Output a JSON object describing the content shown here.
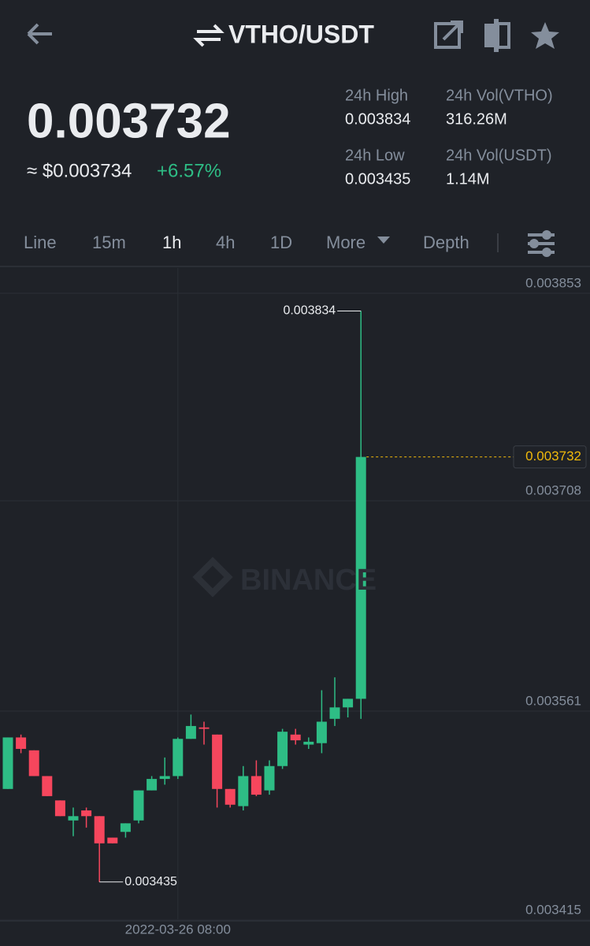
{
  "header": {
    "pair": "VTHO/USDT"
  },
  "ticker": {
    "price": "0.003732",
    "fiat": "≈ $0.003734",
    "change": "+6.57%",
    "stats": [
      {
        "label": "24h High",
        "value": "0.003834"
      },
      {
        "label": "24h Vol(VTHO)",
        "value": "316.26M"
      },
      {
        "label": "24h Low",
        "value": "0.003435"
      },
      {
        "label": "24h Vol(USDT)",
        "value": "1.14M"
      }
    ]
  },
  "tabs": [
    "Line",
    "15m",
    "1h",
    "4h",
    "1D",
    "More",
    "Depth"
  ],
  "chart_data": {
    "type": "candlestick",
    "watermark": "BINANCE",
    "categories": [
      null,
      null,
      null,
      null,
      null,
      null,
      null,
      null,
      null,
      null,
      null,
      null,
      null,
      "2022-03-26 08:00",
      null,
      null,
      null,
      null,
      null,
      null,
      null,
      null,
      null,
      null,
      null,
      null,
      null,
      null
    ],
    "open": [
      0.0035,
      0.003536,
      0.003527,
      0.003509,
      0.003492,
      0.003478,
      0.003485,
      0.003481,
      0.003466,
      0.00347,
      0.003478,
      0.003499,
      0.003507,
      0.003509,
      0.003535,
      0.003543,
      0.003538,
      0.0035,
      0.003488,
      0.003509,
      0.003499,
      0.003516,
      0.003538,
      0.003531,
      0.003532,
      0.003549,
      0.003557,
      0.003563
    ],
    "high": [
      0.003536,
      0.003538,
      0.003527,
      0.003509,
      0.003492,
      0.003487,
      0.003487,
      0.003481,
      0.003466,
      0.003476,
      0.003499,
      0.003509,
      0.003522,
      0.003536,
      0.003552,
      0.003547,
      0.003538,
      0.0035,
      0.003516,
      0.00352,
      0.00352,
      0.003542,
      0.003542,
      0.003536,
      0.003569,
      0.003578,
      0.003563,
      0.003834
    ],
    "low": [
      0.0035,
      0.003525,
      0.003509,
      0.003495,
      0.003481,
      0.003467,
      0.003473,
      0.003435,
      0.003462,
      0.003466,
      0.003476,
      0.003499,
      0.003503,
      0.003507,
      0.003535,
      0.003531,
      0.003487,
      0.003487,
      0.003485,
      0.003495,
      0.003496,
      0.003514,
      0.003531,
      0.003528,
      0.003525,
      0.003544,
      0.00355,
      0.003549
    ],
    "close": [
      0.003536,
      0.003528,
      0.003509,
      0.003495,
      0.003481,
      0.003481,
      0.003481,
      0.003462,
      0.003462,
      0.003476,
      0.003499,
      0.003507,
      0.003509,
      0.003535,
      0.003544,
      0.003542,
      0.0035,
      0.003489,
      0.003509,
      0.003496,
      0.003516,
      0.00354,
      0.003534,
      0.003533,
      0.003547,
      0.003557,
      0.003563,
      0.003732
    ],
    "up_color": "#2ebd85",
    "down_color": "#f6465d",
    "ylim": [
      0.003409,
      0.003864
    ],
    "yticks": [
      0.003853,
      0.003708,
      0.003561,
      0.003415
    ],
    "grid": true,
    "annotations": {
      "high": 0.003834,
      "low": 0.003435,
      "last_price": 0.003732
    }
  }
}
